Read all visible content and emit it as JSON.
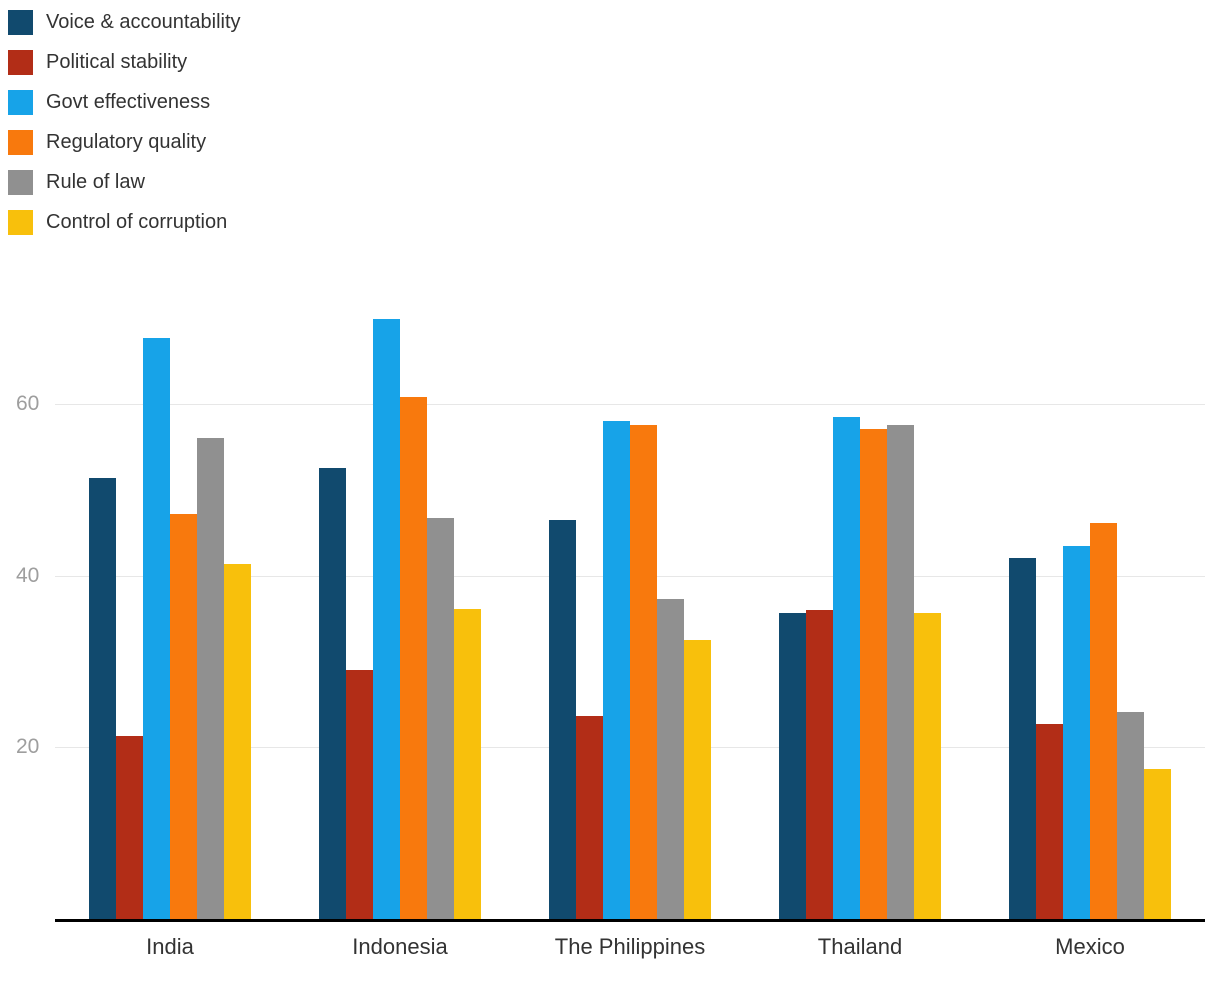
{
  "chart_data": {
    "type": "bar",
    "title": "",
    "categories": [
      "India",
      "Indonesia",
      "The Philippines",
      "Thailand",
      "Mexico"
    ],
    "series": [
      {
        "name": "Voice & accountability",
        "color": "#114a6e",
        "values": [
          51.5,
          52.7,
          46.6,
          35.8,
          42.2
        ]
      },
      {
        "name": "Political stability",
        "color": "#b22d17",
        "values": [
          21.4,
          29.1,
          23.8,
          36.1,
          22.8
        ]
      },
      {
        "name": "Govt effectiveness",
        "color": "#17a3e8",
        "values": [
          67.8,
          70.0,
          58.1,
          58.6,
          43.6
        ]
      },
      {
        "name": "Regulatory quality",
        "color": "#f8790d",
        "values": [
          47.3,
          61.0,
          57.7,
          57.2,
          46.3
        ]
      },
      {
        "name": "Rule of law",
        "color": "#909090",
        "values": [
          56.2,
          46.8,
          37.4,
          57.7,
          24.2
        ]
      },
      {
        "name": "Control of corruption",
        "color": "#f8c00c",
        "values": [
          41.5,
          36.3,
          32.6,
          35.8,
          17.6
        ]
      }
    ],
    "yticks": [
      20,
      40,
      60
    ],
    "ylim": [
      0,
      74
    ],
    "xlabel": "",
    "ylabel": "",
    "grid": true,
    "legend_position": "top-left",
    "axis_color": "#000000",
    "gridline_color": "#e7e7e7",
    "tick_label_color": "#9e9e9e",
    "text_color": "#333333"
  }
}
